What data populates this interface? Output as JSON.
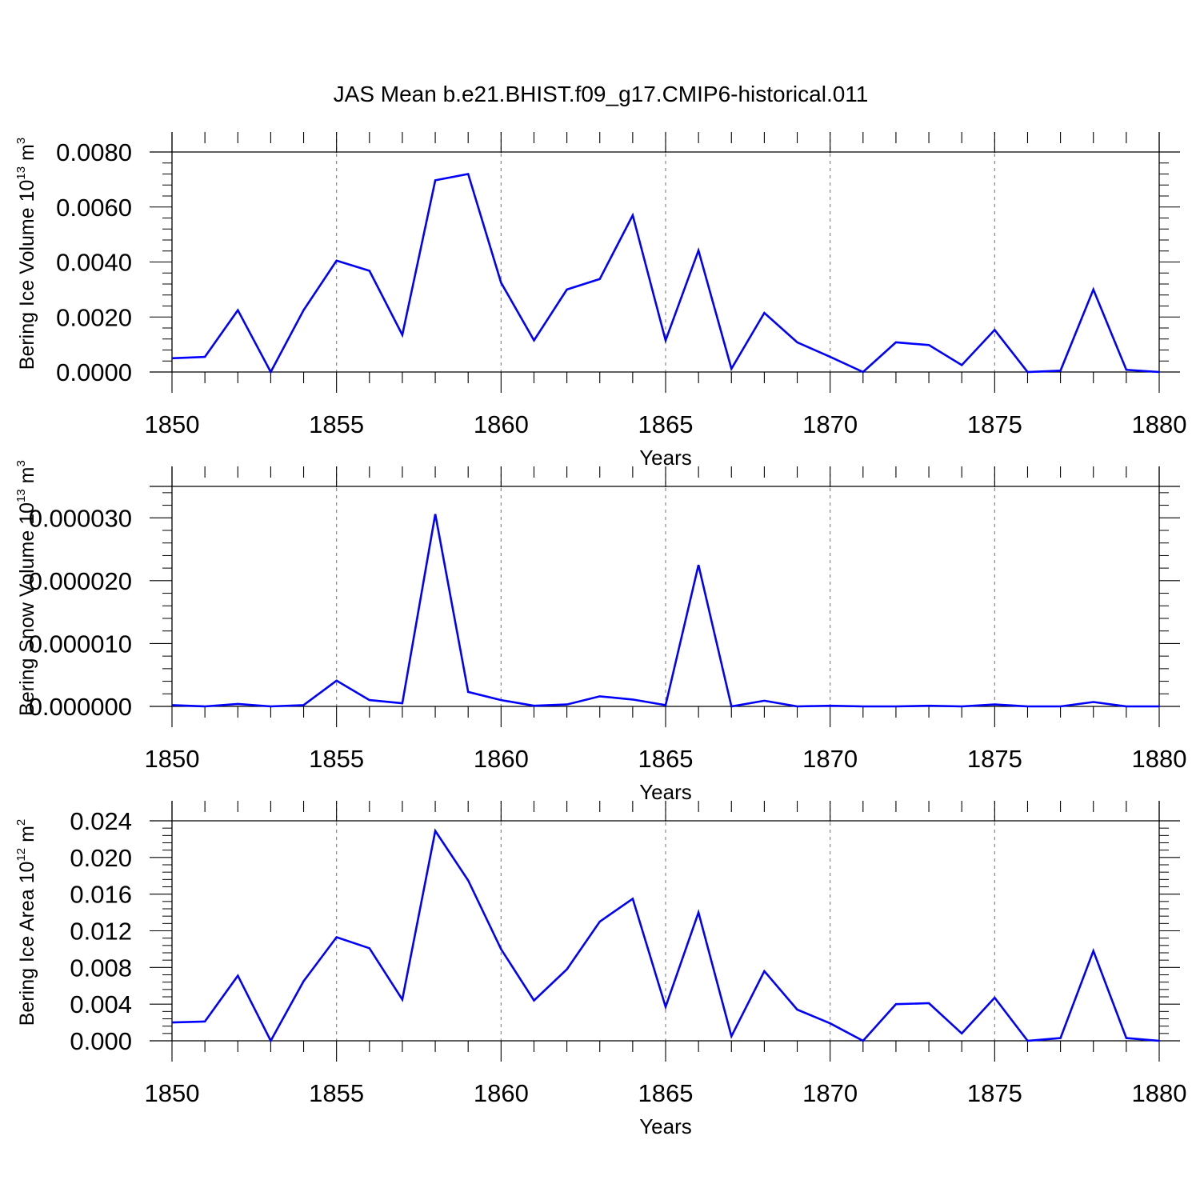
{
  "colors": {
    "series": "#0000ff",
    "axis": "#000000",
    "grid": "#888888"
  },
  "chart_data": [
    {
      "type": "line",
      "title": "JAS Mean b.e21.BHIST.f09_g17.CMIP6-historical.011",
      "xlabel": "Years",
      "ylabel": {
        "text": "Bering Ice Volume 10",
        "exp": "13",
        "unit": " m",
        "unit_exp": "3"
      },
      "xlim": [
        1850,
        1880
      ],
      "ylim": [
        0,
        0.008
      ],
      "xticks": [
        1850,
        1855,
        1860,
        1865,
        1870,
        1875,
        1880
      ],
      "xtick_labels": [
        "1850",
        "1855",
        "1860",
        "1865",
        "1870",
        "1875",
        "1880"
      ],
      "yticks": [
        0,
        0.002,
        0.004,
        0.006,
        0.008
      ],
      "ytick_labels": [
        "0.0000",
        "0.0020",
        "0.0040",
        "0.0060",
        "0.0080"
      ],
      "grid": "vertical dashed at major x ticks",
      "x": [
        1850,
        1851,
        1852,
        1853,
        1854,
        1855,
        1856,
        1857,
        1858,
        1859,
        1860,
        1861,
        1862,
        1863,
        1864,
        1865,
        1866,
        1867,
        1868,
        1869,
        1870,
        1871,
        1872,
        1873,
        1874,
        1875,
        1876,
        1877,
        1878,
        1879,
        1880
      ],
      "series": [
        {
          "name": "Bering Ice Volume",
          "values": [
            0.0005,
            0.00055,
            0.00225,
            0.0,
            0.00225,
            0.00405,
            0.00368,
            0.00135,
            0.00697,
            0.0072,
            0.00325,
            0.00115,
            0.003,
            0.00338,
            0.0057,
            0.00115,
            0.00442,
            0.00012,
            0.00215,
            0.00108,
            0.00055,
            0.0,
            0.00108,
            0.00098,
            0.00025,
            0.00153,
            0.0,
            5e-05,
            0.003,
            8e-05,
            0.0
          ]
        }
      ]
    },
    {
      "type": "line",
      "title": "",
      "xlabel": "Years",
      "ylabel": {
        "text": "Bering Snow Volume 10",
        "exp": "13",
        "unit": " m",
        "unit_exp": "3"
      },
      "xlim": [
        1850,
        1880
      ],
      "ylim": [
        0,
        3.5e-05
      ],
      "xticks": [
        1850,
        1855,
        1860,
        1865,
        1870,
        1875,
        1880
      ],
      "xtick_labels": [
        "1850",
        "1855",
        "1860",
        "1865",
        "1870",
        "1875",
        "1880"
      ],
      "yticks": [
        0,
        1e-05,
        2e-05,
        3e-05
      ],
      "ytick_labels": [
        "0.000000",
        "0.000010",
        "0.000020",
        "0.000030"
      ],
      "grid": "vertical dashed at major x ticks",
      "x": [
        1850,
        1851,
        1852,
        1853,
        1854,
        1855,
        1856,
        1857,
        1858,
        1859,
        1860,
        1861,
        1862,
        1863,
        1864,
        1865,
        1866,
        1867,
        1868,
        1869,
        1870,
        1871,
        1872,
        1873,
        1874,
        1875,
        1876,
        1877,
        1878,
        1879,
        1880
      ],
      "series": [
        {
          "name": "Bering Snow Volume",
          "values": [
            2e-07,
            0.0,
            4e-07,
            0.0,
            2e-07,
            4.1e-06,
            1e-06,
            5e-07,
            3.06e-05,
            2.3e-06,
            1e-06,
            1e-07,
            3e-07,
            1.6e-06,
            1.1e-06,
            2e-07,
            2.25e-05,
            0.0,
            9e-07,
            0.0,
            1e-07,
            0.0,
            0.0,
            1e-07,
            0.0,
            3e-07,
            0.0,
            0.0,
            7e-07,
            0.0,
            0.0
          ]
        }
      ]
    },
    {
      "type": "line",
      "title": "",
      "xlabel": "Years",
      "ylabel": {
        "text": "Bering Ice Area 10",
        "exp": "12",
        "unit": " m",
        "unit_exp": "2"
      },
      "xlim": [
        1850,
        1880
      ],
      "ylim": [
        0,
        0.024
      ],
      "xticks": [
        1850,
        1855,
        1860,
        1865,
        1870,
        1875,
        1880
      ],
      "xtick_labels": [
        "1850",
        "1855",
        "1860",
        "1865",
        "1870",
        "1875",
        "1880"
      ],
      "yticks": [
        0,
        0.004,
        0.008,
        0.012,
        0.016,
        0.02,
        0.024
      ],
      "ytick_labels": [
        "0.000",
        "0.004",
        "0.008",
        "0.012",
        "0.016",
        "0.020",
        "0.024"
      ],
      "grid": "vertical dashed at major x ticks",
      "x": [
        1850,
        1851,
        1852,
        1853,
        1854,
        1855,
        1856,
        1857,
        1858,
        1859,
        1860,
        1861,
        1862,
        1863,
        1864,
        1865,
        1866,
        1867,
        1868,
        1869,
        1870,
        1871,
        1872,
        1873,
        1874,
        1875,
        1876,
        1877,
        1878,
        1879,
        1880
      ],
      "series": [
        {
          "name": "Bering Ice Area",
          "values": [
            0.002,
            0.0021,
            0.0071,
            0.0,
            0.0065,
            0.0113,
            0.0101,
            0.0045,
            0.0229,
            0.0175,
            0.01,
            0.0044,
            0.0078,
            0.013,
            0.0155,
            0.0037,
            0.014,
            0.0005,
            0.0076,
            0.0034,
            0.0019,
            0.0,
            0.004,
            0.0041,
            0.0008,
            0.0047,
            0.0,
            0.0003,
            0.0098,
            0.0003,
            0.0
          ]
        }
      ]
    }
  ]
}
